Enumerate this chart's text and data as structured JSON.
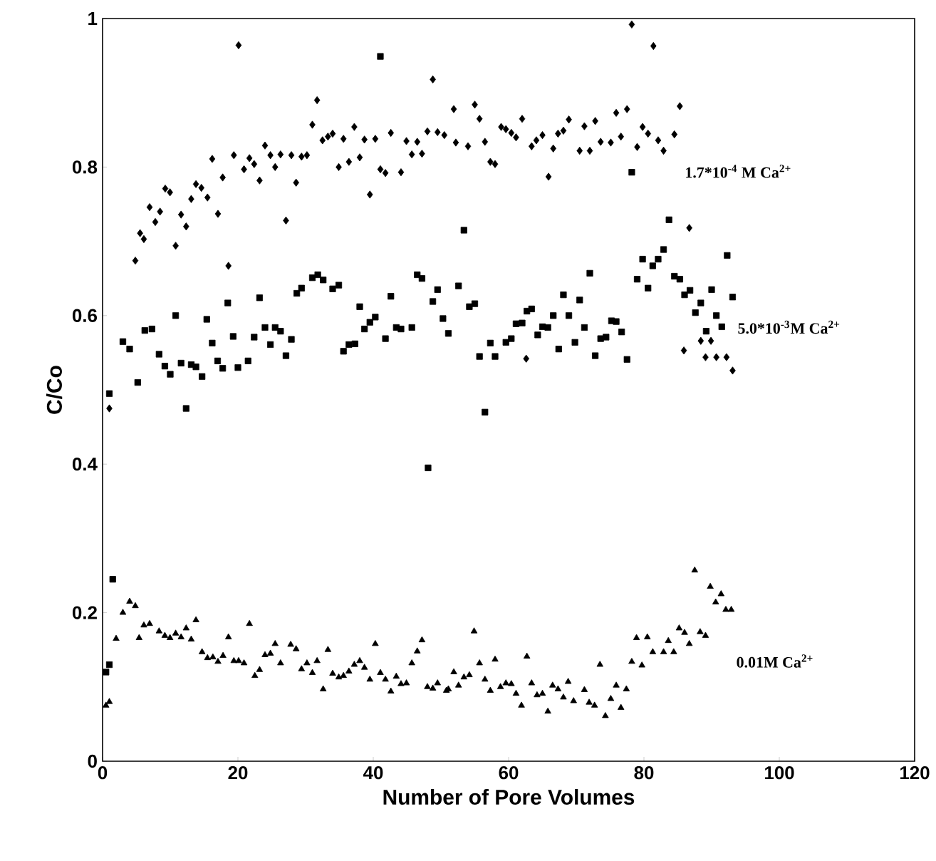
{
  "chart_data": {
    "type": "scatter",
    "xlabel": "Number of Pore Volumes",
    "ylabel": "C/Co",
    "xlim": [
      0,
      120
    ],
    "xticks": [
      0,
      20,
      40,
      60,
      80,
      100,
      120
    ],
    "ylim": [
      0,
      1
    ],
    "yticks": [
      0,
      0.2,
      0.4,
      0.6,
      0.8,
      1
    ],
    "series": [
      {
        "name": "1.7*10$^{-4}$ M Ca$^{2+}$",
        "color": "#000000",
        "marker": "diamond",
        "x": [
          1,
          4.84,
          5.54,
          6.1,
          6.95,
          7.79,
          8.49,
          9.26,
          9.96,
          10.8,
          11.6,
          12.35,
          13.1,
          13.8,
          14.6,
          15.5,
          16.2,
          17.05,
          17.75,
          18.6,
          19.4,
          20.1,
          20.9,
          21.7,
          22.4,
          23.2,
          24.0,
          24.8,
          25.5,
          26.3,
          27.1,
          27.9,
          28.6,
          29.4,
          30.2,
          31.0,
          31.7,
          32.5,
          33.3,
          34.0,
          34.9,
          35.6,
          36.4,
          37.2,
          38.0,
          38.7,
          39.5,
          40.3,
          41.05,
          41.8,
          42.6,
          44.1,
          44.9,
          45.7,
          46.5,
          47.2,
          48.0,
          48.8,
          49.5,
          50.5,
          51.9,
          52.2,
          54.0,
          55.0,
          55.7,
          56.5,
          57.3,
          58.0,
          58.9,
          59.6,
          60.4,
          61.1,
          62.0,
          62.6,
          63.4,
          64.1,
          65.0,
          65.9,
          66.6,
          67.3,
          68.1,
          68.9,
          70.5,
          71.2,
          72.0,
          72.8,
          73.6,
          75.1,
          75.9,
          76.6,
          77.5,
          78.2,
          79.0,
          79.8,
          80.6,
          81.4,
          82.1,
          82.9,
          84.5,
          85.3,
          85.9,
          86.7,
          88.4,
          89.1,
          89.9,
          90.7,
          92.2,
          93.1
        ],
        "values": [
          0.475,
          0.674,
          0.711,
          0.703,
          0.746,
          0.726,
          0.74,
          0.771,
          0.766,
          0.694,
          0.736,
          0.72,
          0.757,
          0.777,
          0.772,
          0.759,
          0.811,
          0.737,
          0.786,
          0.667,
          0.816,
          0.964,
          0.797,
          0.812,
          0.804,
          0.782,
          0.829,
          0.816,
          0.8,
          0.817,
          0.728,
          0.816,
          0.779,
          0.814,
          0.816,
          0.857,
          0.89,
          0.836,
          0.841,
          0.845,
          0.8,
          0.838,
          0.807,
          0.854,
          0.813,
          0.837,
          0.763,
          0.838,
          0.797,
          0.792,
          0.846,
          0.793,
          0.835,
          0.817,
          0.834,
          0.818,
          0.848,
          0.918,
          0.847,
          0.843,
          0.878,
          0.833,
          0.828,
          0.884,
          0.865,
          0.834,
          0.807,
          0.804,
          0.854,
          0.851,
          0.846,
          0.84,
          0.865,
          0.542,
          0.828,
          0.836,
          0.843,
          0.787,
          0.825,
          0.845,
          0.849,
          0.864,
          0.822,
          0.855,
          0.822,
          0.862,
          0.834,
          0.833,
          0.873,
          0.841,
          0.878,
          0.992,
          0.827,
          0.854,
          0.845,
          0.963,
          0.836,
          0.822,
          0.844,
          0.882,
          0.553,
          0.718,
          0.566,
          0.544,
          0.566,
          0.544,
          0.544,
          0.526
        ]
      },
      {
        "name": "5.0*10$^{-3}$M Ca$^{2+}$",
        "color": "#000000",
        "marker": "square",
        "x": [
          0.5,
          1,
          1,
          1.5,
          3,
          4,
          5.19,
          6.24,
          7.3,
          8.35,
          9.2,
          10.0,
          10.8,
          11.6,
          12.35,
          13.1,
          13.8,
          14.7,
          15.4,
          16.2,
          17.0,
          17.75,
          18.5,
          19.3,
          20.0,
          21.5,
          22.4,
          23.2,
          24.0,
          24.8,
          25.5,
          26.3,
          27.1,
          27.9,
          28.7,
          29.4,
          31.0,
          31.8,
          32.6,
          34.0,
          34.9,
          35.6,
          36.4,
          37.3,
          38.0,
          38.7,
          39.5,
          40.3,
          41.05,
          41.8,
          42.6,
          43.4,
          44.1,
          45.7,
          46.5,
          47.2,
          48.1,
          48.8,
          49.5,
          50.3,
          51.1,
          52.6,
          53.4,
          54.2,
          55.0,
          55.7,
          56.5,
          57.3,
          58.0,
          59.6,
          60.4,
          61.1,
          62.0,
          62.7,
          63.4,
          64.3,
          65.0,
          65.8,
          66.6,
          67.4,
          68.1,
          68.9,
          69.8,
          70.5,
          71.2,
          72.0,
          72.8,
          73.6,
          74.4,
          75.2,
          75.9,
          76.7,
          77.5,
          78.2,
          79.0,
          79.8,
          80.6,
          81.3,
          82.1,
          82.9,
          83.7,
          84.5,
          85.3,
          86.0,
          86.8,
          87.6,
          88.4,
          89.2,
          90.0,
          90.7,
          91.5,
          92.3,
          93.1
        ],
        "values": [
          0.12,
          0.495,
          0.13,
          0.245,
          0.565,
          0.555,
          0.51,
          0.58,
          0.582,
          0.548,
          0.532,
          0.521,
          0.6,
          0.536,
          0.475,
          0.534,
          0.531,
          0.518,
          0.595,
          0.563,
          0.539,
          0.529,
          0.617,
          0.572,
          0.53,
          0.539,
          0.571,
          0.624,
          0.584,
          0.561,
          0.584,
          0.579,
          0.546,
          0.568,
          0.63,
          0.637,
          0.651,
          0.655,
          0.648,
          0.636,
          0.641,
          0.552,
          0.561,
          0.562,
          0.612,
          0.582,
          0.591,
          0.598,
          0.949,
          0.569,
          0.626,
          0.584,
          0.582,
          0.584,
          0.655,
          0.65,
          0.395,
          0.619,
          0.635,
          0.596,
          0.576,
          0.64,
          0.715,
          0.612,
          0.616,
          0.545,
          0.47,
          0.563,
          0.545,
          0.564,
          0.569,
          0.589,
          0.59,
          0.606,
          0.609,
          0.574,
          0.585,
          0.584,
          0.6,
          0.555,
          0.628,
          0.6,
          0.564,
          0.621,
          0.584,
          0.657,
          0.546,
          0.569,
          0.571,
          0.593,
          0.592,
          0.578,
          0.541,
          0.793,
          0.649,
          0.676,
          0.637,
          0.667,
          0.676,
          0.689,
          0.729,
          0.653,
          0.649,
          0.628,
          0.634,
          0.604,
          0.617,
          0.579,
          0.635,
          0.6,
          0.585,
          0.681,
          0.625
        ]
      },
      {
        "name": "0.01M Ca$^{2+}$",
        "color": "#000000",
        "marker": "triangle",
        "x": [
          0.5,
          1,
          2,
          3,
          4,
          4.84,
          5.4,
          6.1,
          6.95,
          8.35,
          9.2,
          9.96,
          10.8,
          11.6,
          12.35,
          13.1,
          13.8,
          14.7,
          15.5,
          16.3,
          17.05,
          17.8,
          18.6,
          19.4,
          20.1,
          20.9,
          21.7,
          22.5,
          23.2,
          24.0,
          24.8,
          25.5,
          26.3,
          27.8,
          28.6,
          29.4,
          30.2,
          31.0,
          31.7,
          32.6,
          33.3,
          34.0,
          34.9,
          35.6,
          36.4,
          37.2,
          38.0,
          38.7,
          39.5,
          40.3,
          41.05,
          41.8,
          42.6,
          43.4,
          44.1,
          44.9,
          45.7,
          46.5,
          47.2,
          48.0,
          48.8,
          49.5,
          50.8,
          51.1,
          51.9,
          52.6,
          53.4,
          54.2,
          54.9,
          55.7,
          56.5,
          57.3,
          58.0,
          58.8,
          59.6,
          60.4,
          61.1,
          61.9,
          62.7,
          63.4,
          64.2,
          65.0,
          65.8,
          66.5,
          67.3,
          68.1,
          68.8,
          69.6,
          71.2,
          71.9,
          72.7,
          73.5,
          74.3,
          75.1,
          75.9,
          76.6,
          77.4,
          78.2,
          78.9,
          79.7,
          80.5,
          81.3,
          82.9,
          83.6,
          84.4,
          85.2,
          86.0,
          86.7,
          87.5,
          88.3,
          89.1,
          89.8,
          90.6,
          91.4,
          92.1,
          92.9
        ],
        "values": [
          0.075,
          0.08,
          0.165,
          0.2,
          0.215,
          0.209,
          0.166,
          0.183,
          0.185,
          0.175,
          0.169,
          0.166,
          0.172,
          0.167,
          0.179,
          0.164,
          0.19,
          0.147,
          0.139,
          0.14,
          0.134,
          0.142,
          0.167,
          0.135,
          0.135,
          0.132,
          0.185,
          0.115,
          0.123,
          0.143,
          0.145,
          0.158,
          0.132,
          0.157,
          0.151,
          0.124,
          0.132,
          0.119,
          0.135,
          0.097,
          0.15,
          0.118,
          0.113,
          0.115,
          0.121,
          0.13,
          0.135,
          0.126,
          0.11,
          0.158,
          0.119,
          0.11,
          0.094,
          0.114,
          0.104,
          0.105,
          0.132,
          0.148,
          0.163,
          0.1,
          0.098,
          0.105,
          0.095,
          0.097,
          0.12,
          0.102,
          0.113,
          0.116,
          0.175,
          0.132,
          0.11,
          0.095,
          0.137,
          0.1,
          0.105,
          0.104,
          0.091,
          0.075,
          0.141,
          0.105,
          0.089,
          0.091,
          0.067,
          0.102,
          0.097,
          0.086,
          0.107,
          0.081,
          0.096,
          0.079,
          0.075,
          0.13,
          0.061,
          0.084,
          0.102,
          0.072,
          0.097,
          0.134,
          0.166,
          0.129,
          0.167,
          0.147,
          0.147,
          0.162,
          0.147,
          0.179,
          0.173,
          0.158,
          0.257,
          0.174,
          0.169,
          0.235,
          0.214,
          0.225,
          0.204,
          0.204
        ]
      }
    ]
  }
}
